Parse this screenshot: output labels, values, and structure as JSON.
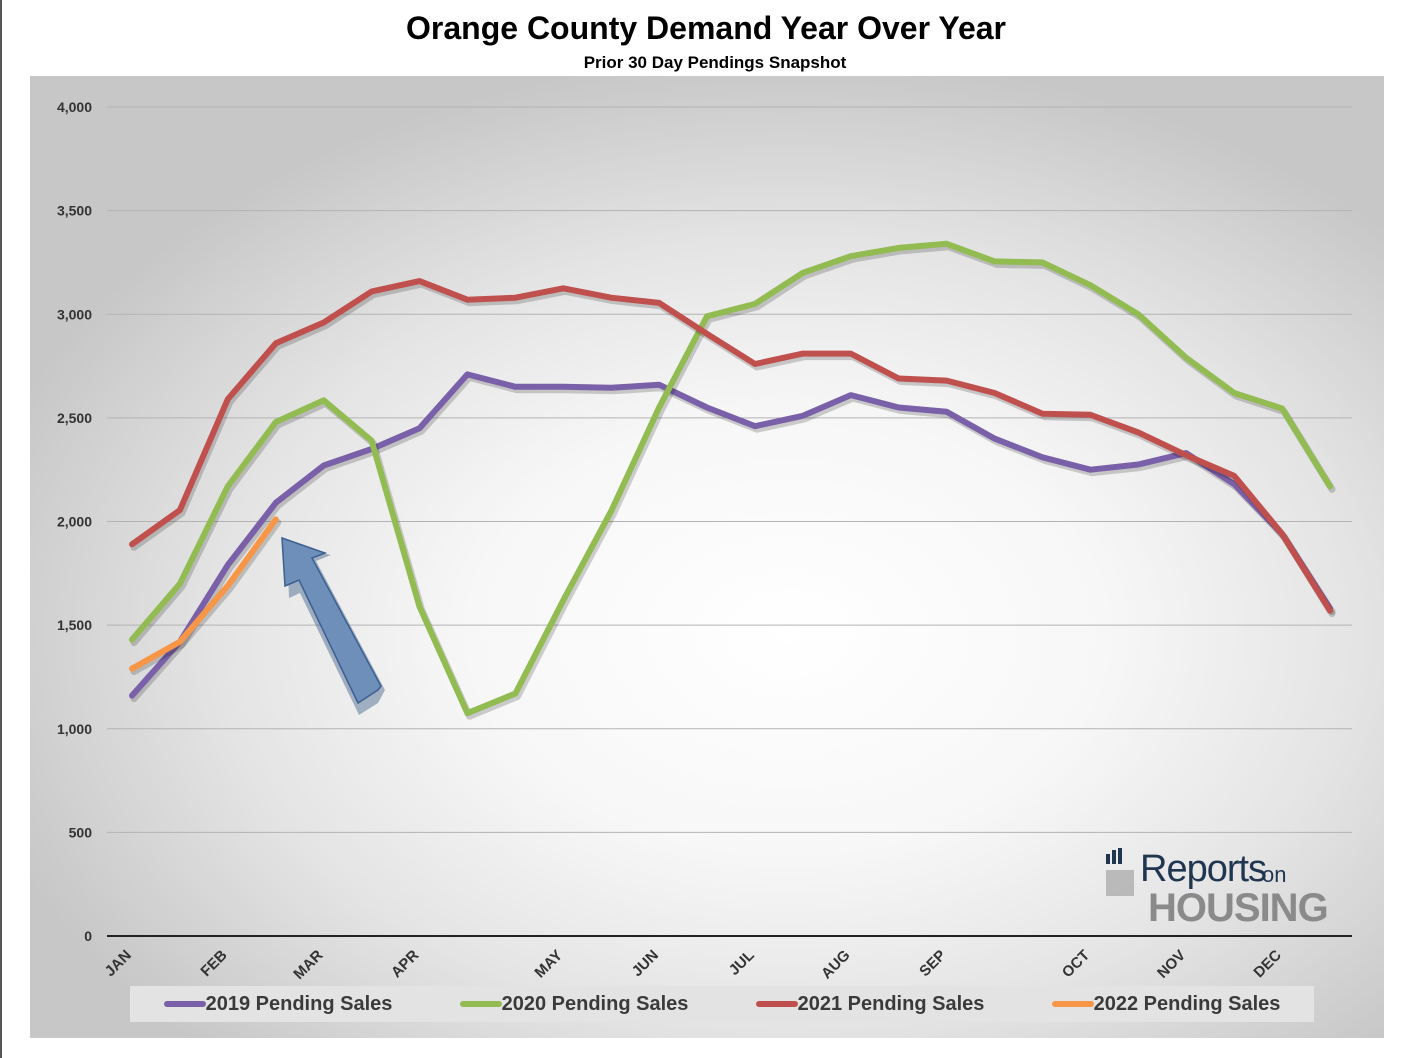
{
  "chart_data": {
    "type": "line",
    "title": "Orange County Demand Year Over Year",
    "subtitle": "Prior 30 Day Pendings Snapshot",
    "xlabel": "",
    "ylabel": "",
    "ylim": [
      0,
      4000
    ],
    "yticks": [
      0,
      500,
      1000,
      1500,
      2000,
      2500,
      3000,
      3500,
      4000
    ],
    "ytick_labels": [
      "0",
      "500",
      "1,000",
      "1,500",
      "2,000",
      "2,500",
      "3,000",
      "3,500",
      "4,000"
    ],
    "month_labels": [
      "JAN",
      "FEB",
      "MAR",
      "APR",
      "MAY",
      "JUN",
      "JUL",
      "AUG",
      "SEP",
      "OCT",
      "NOV",
      "DEC"
    ],
    "month_label_points": [
      0,
      2,
      4,
      6,
      9,
      11,
      13,
      15,
      17,
      20,
      22,
      24
    ],
    "point_count": 26,
    "grid": true,
    "legend_position": "bottom",
    "series": [
      {
        "name": "2019 Pending Sales",
        "color": "#7a60a8",
        "values": [
          1160,
          1420,
          1790,
          2090,
          2270,
          2350,
          2450,
          2710,
          2650,
          2650,
          2645,
          2660,
          2550,
          2460,
          2510,
          2610,
          2550,
          2530,
          2400,
          2310,
          2250,
          2275,
          2330,
          2180,
          1940,
          1580
        ]
      },
      {
        "name": "2020 Pending Sales",
        "color": "#92bb52",
        "values": [
          1430,
          1700,
          2170,
          2480,
          2585,
          2390,
          1590,
          1075,
          1170,
          1620,
          2050,
          2550,
          2990,
          3050,
          3200,
          3280,
          3320,
          3340,
          3255,
          3250,
          3140,
          3000,
          2790,
          2620,
          2545,
          2170
        ]
      },
      {
        "name": "2021 Pending Sales",
        "color": "#c0504d",
        "values": [
          1890,
          2055,
          2590,
          2860,
          2960,
          3110,
          3160,
          3070,
          3080,
          3125,
          3080,
          3055,
          2905,
          2760,
          2810,
          2810,
          2690,
          2680,
          2620,
          2520,
          2515,
          2430,
          2320,
          2220,
          1940,
          1570
        ]
      },
      {
        "name": "2022 Pending Sales",
        "color": "#f79646",
        "values": [
          1290,
          1420,
          1690,
          2010
        ]
      }
    ]
  },
  "logo": {
    "top": "Reports",
    "on": "on",
    "bottom": "HOUSING"
  }
}
